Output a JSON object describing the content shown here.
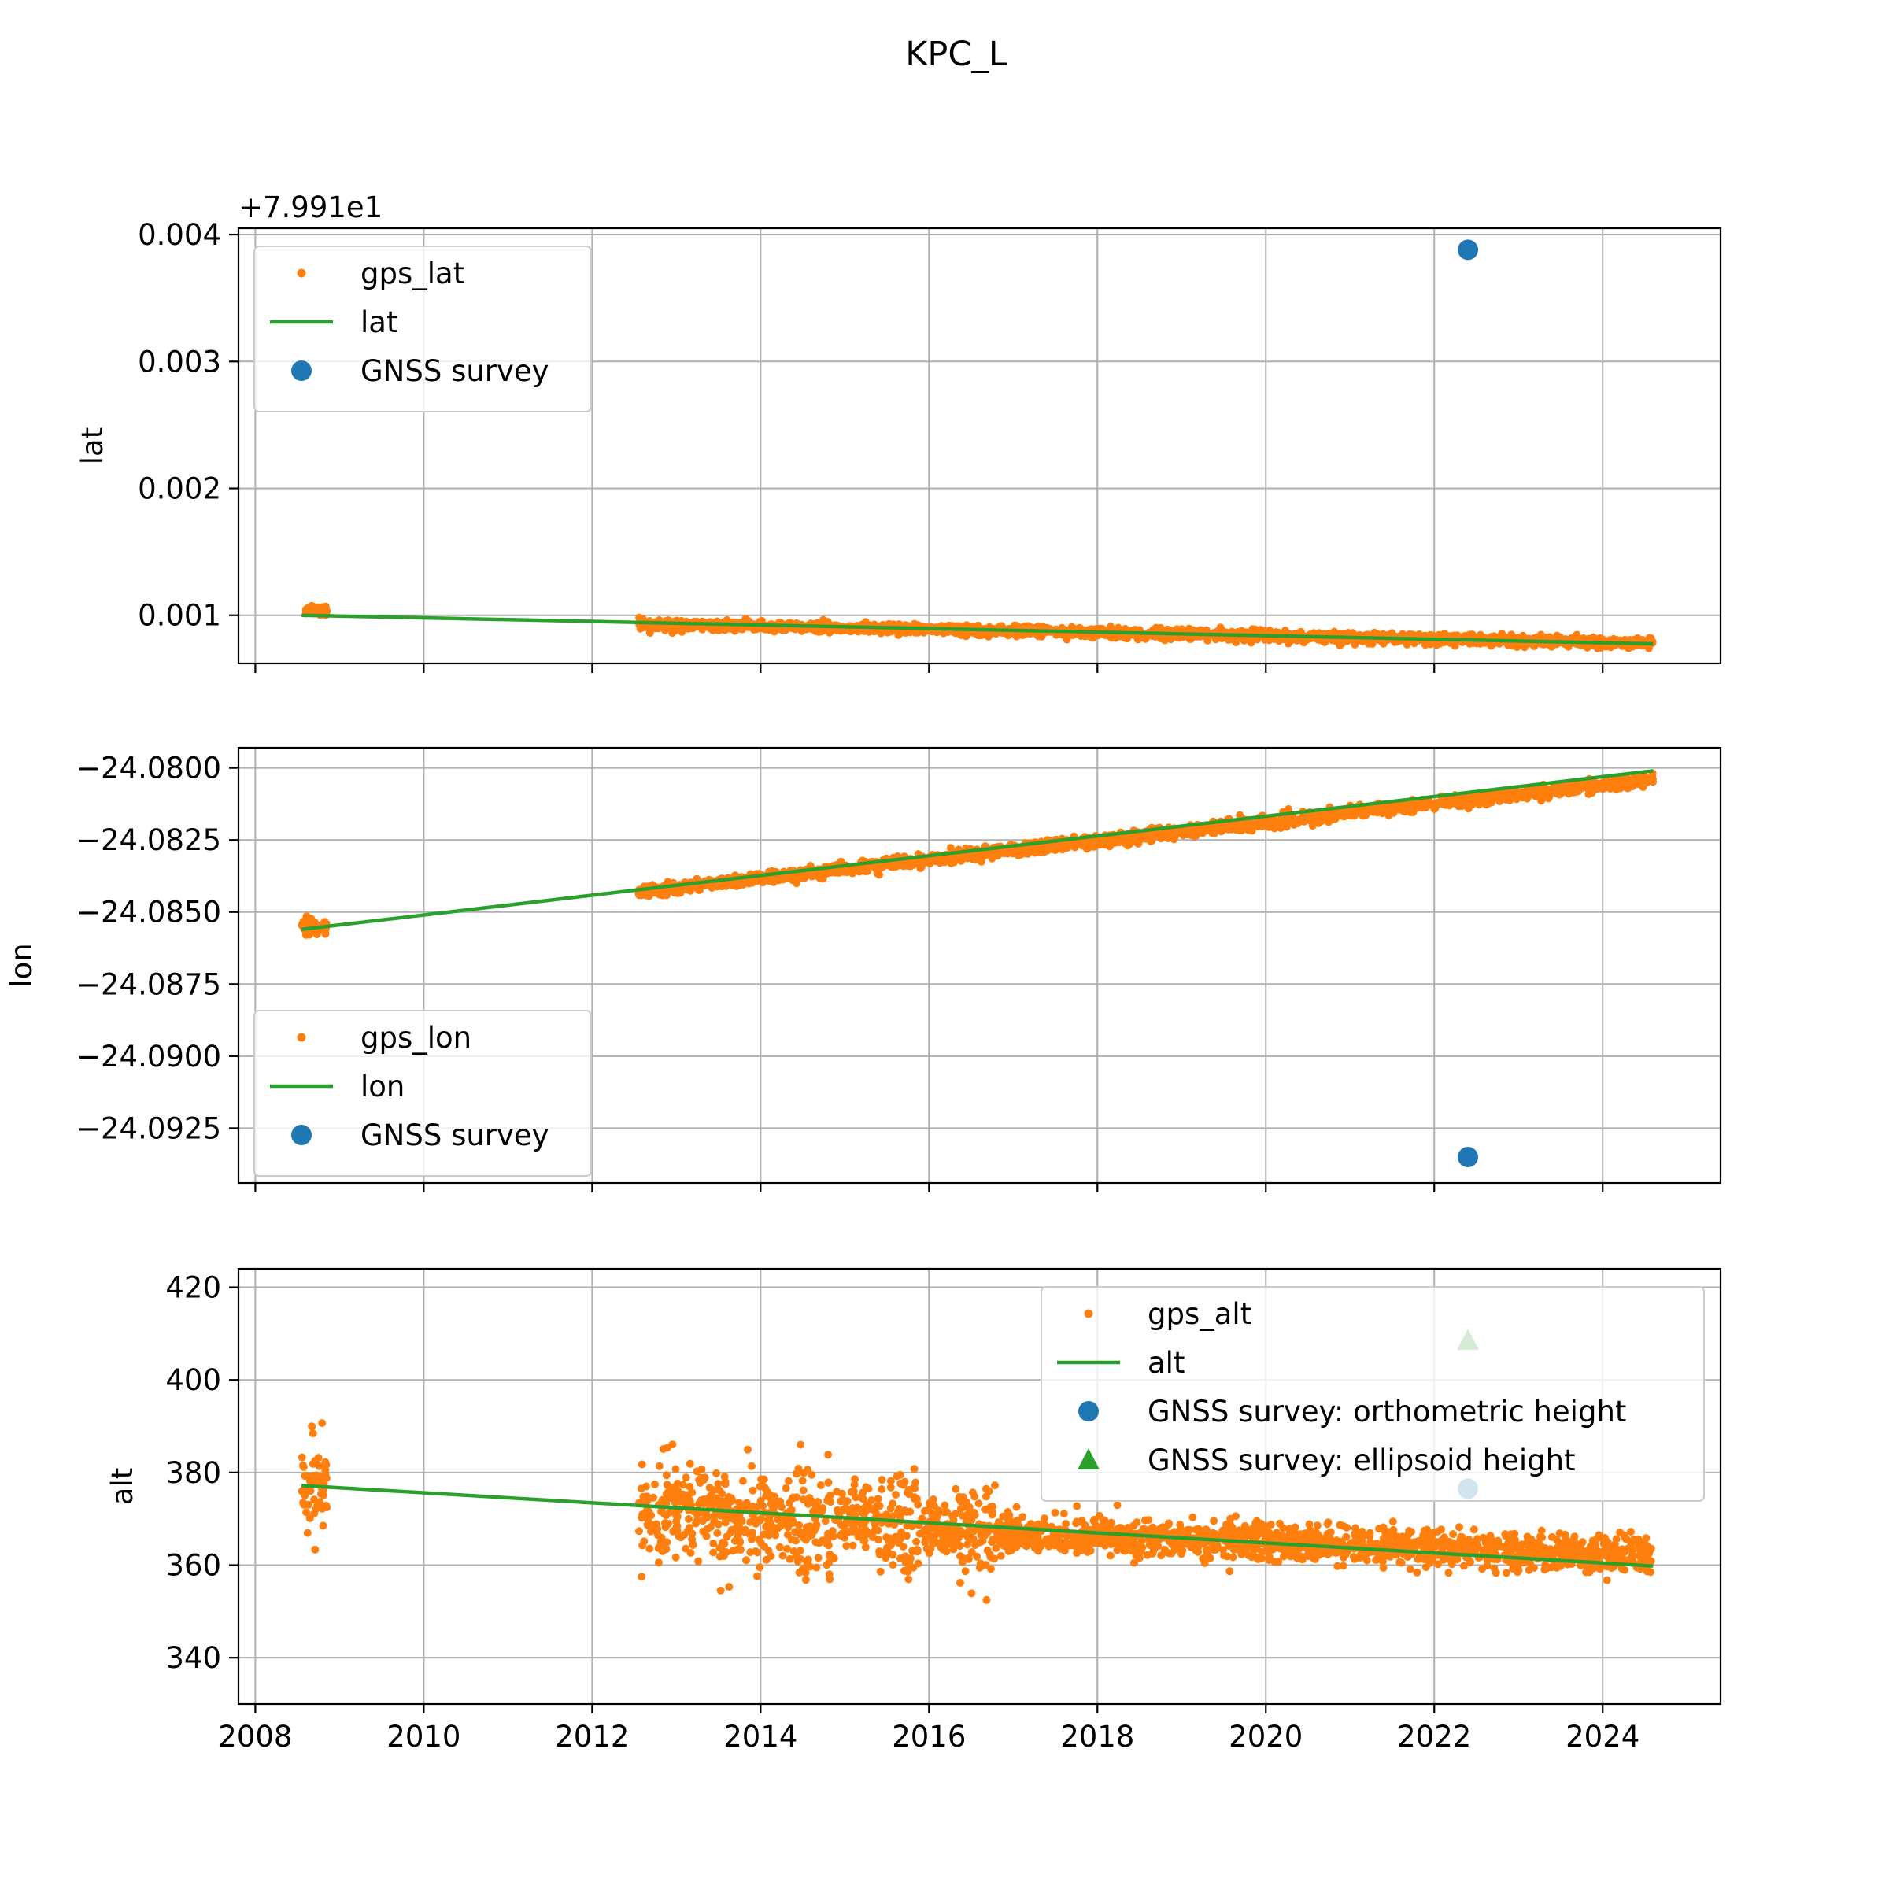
{
  "figure": {
    "title": "KPC_L"
  },
  "colors": {
    "gps": "#ff7f0e",
    "fit": "#2ca02c",
    "survey": "#1f77b4",
    "ellipsoid": "#2ca02c"
  },
  "chart_data": [
    {
      "type": "scatter",
      "ylabel": "lat",
      "offset_text": "+7.991e1",
      "xlim": [
        2007.8,
        2025.4
      ],
      "ylim": [
        0.00062,
        0.00405
      ],
      "xticks": [
        2008,
        2010,
        2012,
        2014,
        2016,
        2018,
        2020,
        2022,
        2024
      ],
      "xtick_labels_visible": false,
      "yticks": [
        0.001,
        0.002,
        0.003,
        0.004
      ],
      "ytick_labels": [
        "0.001",
        "0.002",
        "0.003",
        "0.004"
      ],
      "grid": true,
      "legend": {
        "placement": "upper-left",
        "entries": [
          "gps_lat",
          "lat",
          "GNSS survey"
        ]
      },
      "series": [
        {
          "name": "gps_lat",
          "kind": "points",
          "segments": [
            {
              "x_range": [
                2008.6,
                2008.85
              ],
              "center": [
                0.00105,
                0.00104
              ],
              "spread": 4e-05
            },
            {
              "x_range": [
                2012.55,
                2024.6
              ],
              "center": [
                0.00093,
                0.00078
              ],
              "spread": 3.5e-05
            }
          ]
        },
        {
          "name": "lat",
          "kind": "line",
          "x": [
            2008.55,
            2024.6
          ],
          "y": [
            0.001,
            0.000775
          ]
        },
        {
          "name": "GNSS survey",
          "kind": "marker",
          "x": [
            2022.4
          ],
          "y": [
            0.00388
          ]
        }
      ]
    },
    {
      "type": "scatter",
      "ylabel": "lon",
      "xlim": [
        2007.8,
        2025.4
      ],
      "ylim": [
        -24.0944,
        -24.0793
      ],
      "xticks": [
        2008,
        2010,
        2012,
        2014,
        2016,
        2018,
        2020,
        2022,
        2024
      ],
      "xtick_labels_visible": false,
      "yticks": [
        -24.0925,
        -24.09,
        -24.0875,
        -24.085,
        -24.0825,
        -24.08
      ],
      "ytick_labels": [
        "−24.0925",
        "−24.0900",
        "−24.0875",
        "−24.0850",
        "−24.0825",
        "−24.0800"
      ],
      "grid": true,
      "legend": {
        "placement": "lower-left",
        "entries": [
          "gps_lon",
          "lon",
          "GNSS survey"
        ]
      },
      "series": [
        {
          "name": "gps_lon",
          "kind": "points",
          "segments": [
            {
              "x_range": [
                2008.55,
                2008.85
              ],
              "center": [
                -24.0854,
                -24.0856
              ],
              "spread": 0.00025
            },
            {
              "x_range": [
                2012.55,
                2024.6
              ],
              "center": [
                -24.0843,
                -24.0804
              ],
              "spread": 0.00018
            }
          ]
        },
        {
          "name": "lon",
          "kind": "line",
          "x": [
            2008.55,
            2024.6
          ],
          "y": [
            -24.0856,
            -24.0801
          ]
        },
        {
          "name": "GNSS survey",
          "kind": "marker",
          "x": [
            2022.4
          ],
          "y": [
            -24.0935
          ]
        }
      ]
    },
    {
      "type": "scatter",
      "ylabel": "alt",
      "xlim": [
        2007.8,
        2025.4
      ],
      "ylim": [
        330,
        424
      ],
      "xticks": [
        2008,
        2010,
        2012,
        2014,
        2016,
        2018,
        2020,
        2022,
        2024
      ],
      "xtick_labels": [
        "2008",
        "2010",
        "2012",
        "2014",
        "2016",
        "2018",
        "2020",
        "2022",
        "2024"
      ],
      "yticks": [
        340,
        360,
        380,
        400,
        420
      ],
      "ytick_labels": [
        "340",
        "360",
        "380",
        "400",
        "420"
      ],
      "grid": true,
      "legend": {
        "placement": "upper-right",
        "entries": [
          "gps_alt",
          "alt",
          "GNSS survey: orthometric height",
          "GNSS survey: ellipsoid height"
        ]
      },
      "series": [
        {
          "name": "gps_alt",
          "kind": "points",
          "segments": [
            {
              "x_range": [
                2008.55,
                2008.85
              ],
              "center": [
                377,
                377
              ],
              "spread": 9
            },
            {
              "x_range": [
                2012.55,
                2013.0
              ],
              "center": [
                371,
                371
              ],
              "spread": 10
            },
            {
              "x_range": [
                2013.0,
                2013.5
              ],
              "center": [
                372,
                372
              ],
              "spread": 8
            },
            {
              "x_range": [
                2013.5,
                2014.0
              ],
              "center": [
                370,
                370
              ],
              "spread": 11
            },
            {
              "x_range": [
                2014.0,
                2014.4
              ],
              "center": [
                370,
                370
              ],
              "spread": 7
            },
            {
              "x_range": [
                2014.4,
                2014.9
              ],
              "center": [
                369,
                369
              ],
              "spread": 11
            },
            {
              "x_range": [
                2014.9,
                2015.4
              ],
              "center": [
                370,
                370
              ],
              "spread": 7
            },
            {
              "x_range": [
                2015.4,
                2015.9
              ],
              "center": [
                368,
                368
              ],
              "spread": 11
            },
            {
              "x_range": [
                2015.9,
                2016.3
              ],
              "center": [
                368,
                368
              ],
              "spread": 5
            },
            {
              "x_range": [
                2016.3,
                2016.8
              ],
              "center": [
                367,
                367
              ],
              "spread": 9
            },
            {
              "x_range": [
                2016.8,
                2024.6
              ],
              "center": [
                367,
                362
              ],
              "spread": 3.5
            }
          ]
        },
        {
          "name": "alt",
          "kind": "line",
          "x": [
            2008.55,
            2024.6
          ],
          "y": [
            377.2,
            359.8
          ]
        },
        {
          "name": "GNSS survey: orthometric height",
          "kind": "marker",
          "x": [
            2022.4
          ],
          "y": [
            376.5
          ]
        },
        {
          "name": "GNSS survey: ellipsoid height",
          "kind": "marker",
          "x": [
            2022.4
          ],
          "y": [
            408.5
          ]
        }
      ]
    }
  ]
}
